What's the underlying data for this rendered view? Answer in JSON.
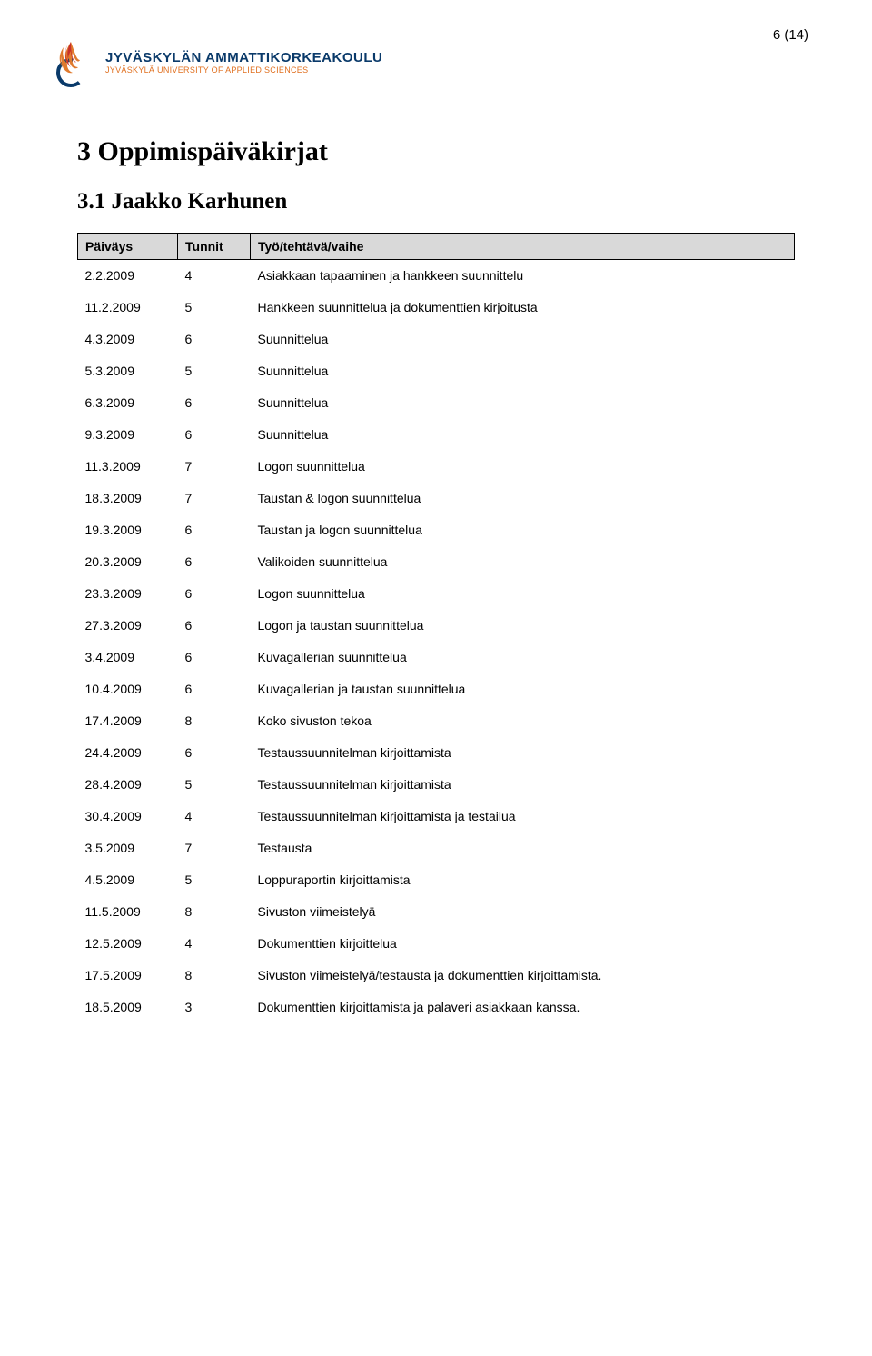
{
  "page_number": "6 (14)",
  "logo": {
    "main": "JYVÄSKYLÄN AMMATTIKORKEAKOULU",
    "sub": "JYVÄSKYLÄ UNIVERSITY OF APPLIED SCIENCES",
    "colors": {
      "flame_red": "#c8302a",
      "flame_orange": "#e07a2e",
      "circle_blue": "#0a3a6a",
      "text_blue": "#0a3a6a",
      "text_orange": "#e07020"
    }
  },
  "headings": {
    "h1": "3 Oppimispäiväkirjat",
    "h2": "3.1 Jaakko Karhunen"
  },
  "table": {
    "columns": [
      "Päiväys",
      "Tunnit",
      "Työ/tehtävä/vaihe"
    ],
    "header_bg": "#d9d9d9",
    "border_color": "#000000",
    "rows": [
      [
        "2.2.2009",
        "4",
        "Asiakkaan tapaaminen ja hankkeen suunnittelu"
      ],
      [
        "11.2.2009",
        "5",
        "Hankkeen suunnittelua ja dokumenttien kirjoitusta"
      ],
      [
        "4.3.2009",
        "6",
        "Suunnittelua"
      ],
      [
        "5.3.2009",
        "5",
        "Suunnittelua"
      ],
      [
        "6.3.2009",
        "6",
        "Suunnittelua"
      ],
      [
        "9.3.2009",
        "6",
        "Suunnittelua"
      ],
      [
        "11.3.2009",
        "7",
        "Logon suunnittelua"
      ],
      [
        "18.3.2009",
        "7",
        "Taustan & logon suunnittelua"
      ],
      [
        "19.3.2009",
        "6",
        "Taustan ja logon suunnittelua"
      ],
      [
        "20.3.2009",
        "6",
        "Valikoiden suunnittelua"
      ],
      [
        "23.3.2009",
        "6",
        "Logon suunnittelua"
      ],
      [
        "27.3.2009",
        "6",
        "Logon ja taustan suunnittelua"
      ],
      [
        "3.4.2009",
        "6",
        "Kuvagallerian suunnittelua"
      ],
      [
        "10.4.2009",
        "6",
        "Kuvagallerian ja taustan suunnittelua"
      ],
      [
        "17.4.2009",
        "8",
        "Koko sivuston tekoa"
      ],
      [
        "24.4.2009",
        "6",
        "Testaussuunnitelman kirjoittamista"
      ],
      [
        "28.4.2009",
        "5",
        "Testaussuunnitelman kirjoittamista"
      ],
      [
        "30.4.2009",
        "4",
        "Testaussuunnitelman kirjoittamista ja testailua"
      ],
      [
        "3.5.2009",
        "7",
        "Testausta"
      ],
      [
        "4.5.2009",
        "5",
        "Loppuraportin kirjoittamista"
      ],
      [
        "11.5.2009",
        "8",
        "Sivuston viimeistelyä"
      ],
      [
        "12.5.2009",
        "4",
        "Dokumenttien kirjoittelua"
      ],
      [
        "17.5.2009",
        "8",
        "Sivuston viimeistelyä/testausta ja dokumenttien kirjoittamista."
      ],
      [
        "18.5.2009",
        "3",
        "Dokumenttien kirjoittamista ja palaveri asiakkaan kanssa."
      ]
    ]
  }
}
